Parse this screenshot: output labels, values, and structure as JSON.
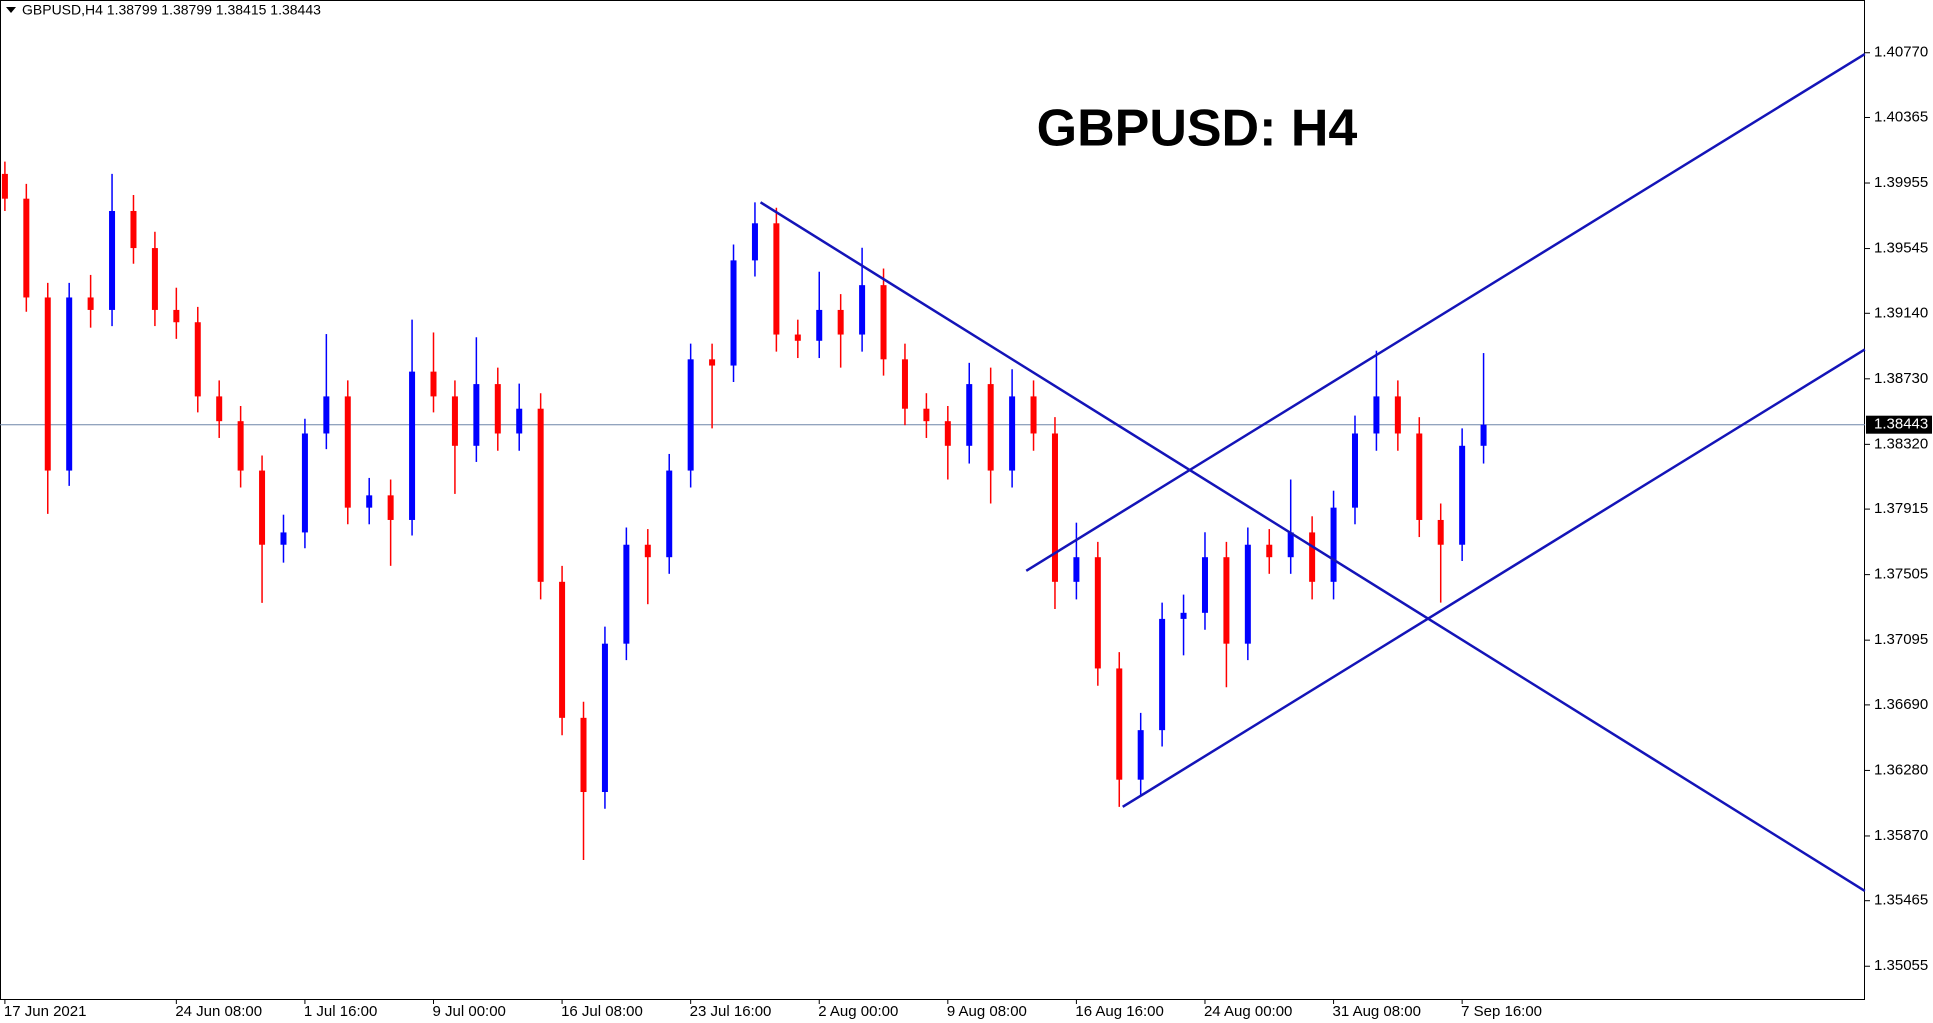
{
  "chart_data": {
    "type": "candlestick",
    "symbol_info": "GBPUSD,H4  1.38799 1.38799 1.38415 1.38443",
    "title": "GBPUSD: H4",
    "categories": [
      "17 Jun 2021",
      null,
      null,
      null,
      null,
      null,
      null,
      null,
      "24 Jun 08:00",
      null,
      null,
      null,
      null,
      null,
      "1 Jul 16:00",
      null,
      null,
      null,
      null,
      null,
      "9 Jul 00:00",
      null,
      null,
      null,
      null,
      null,
      "16 Jul 08:00",
      null,
      null,
      null,
      null,
      null,
      "23 Jul 16:00",
      null,
      null,
      null,
      null,
      null,
      "2 Aug 00:00",
      null,
      null,
      null,
      null,
      null,
      "9 Aug 08:00",
      null,
      null,
      null,
      null,
      null,
      "16 Aug 16:00",
      null,
      null,
      null,
      null,
      null,
      "24 Aug 00:00",
      null,
      null,
      null,
      null,
      null,
      "31 Aug 08:00",
      null,
      null,
      null,
      null,
      null,
      "7 Sep 16:00",
      null
    ],
    "open": [
      1.40012,
      1.39857,
      1.39239,
      1.38156,
      1.39239,
      1.39161,
      1.3978,
      1.39548,
      1.39161,
      1.39084,
      1.3862,
      1.38465,
      1.38156,
      1.37692,
      1.37769,
      1.38388,
      1.3862,
      1.37924,
      1.38001,
      1.37847,
      1.38775,
      1.3862,
      1.38311,
      1.38697,
      1.38388,
      1.38543,
      1.3746,
      1.36609,
      1.36145,
      1.37073,
      1.37692,
      1.37614,
      1.38156,
      1.38852,
      1.38813,
      1.39471,
      1.39703,
      1.39007,
      1.38968,
      1.39161,
      1.39007,
      1.39316,
      1.38852,
      1.38543,
      1.38465,
      1.38311,
      1.38697,
      1.38156,
      1.3862,
      1.38388,
      1.3746,
      1.37614,
      1.36918,
      1.36222,
      1.36532,
      1.37228,
      1.37266,
      1.37614,
      1.37073,
      1.37692,
      1.37614,
      1.37769,
      1.3746,
      1.37924,
      1.38388,
      1.3862,
      1.38388,
      1.37847,
      1.37692,
      1.38311
    ],
    "high": [
      1.40089,
      1.3995,
      1.3933,
      1.3933,
      1.3938,
      1.40012,
      1.3988,
      1.3965,
      1.393,
      1.3918,
      1.3872,
      1.3856,
      1.3825,
      1.3788,
      1.3848,
      1.3901,
      1.3872,
      1.3811,
      1.381,
      1.391,
      1.3902,
      1.3872,
      1.3899,
      1.388,
      1.387,
      1.3864,
      1.3756,
      1.3671,
      1.3718,
      1.378,
      1.3779,
      1.3826,
      1.3895,
      1.3895,
      1.3957,
      1.39834,
      1.398,
      1.391,
      1.394,
      1.3926,
      1.3955,
      1.3942,
      1.3895,
      1.3864,
      1.3856,
      1.3883,
      1.388,
      1.3879,
      1.3872,
      1.3849,
      1.3783,
      1.3771,
      1.3702,
      1.3664,
      1.3733,
      1.3738,
      1.3777,
      1.3771,
      1.378,
      1.3779,
      1.381,
      1.3787,
      1.3803,
      1.385,
      1.38906,
      1.3872,
      1.3849,
      1.3795,
      1.3842,
      1.38891
    ],
    "low": [
      1.3978,
      1.3915,
      1.37885,
      1.3806,
      1.3905,
      1.3906,
      1.3945,
      1.3906,
      1.3898,
      1.3852,
      1.3836,
      1.3805,
      1.37328,
      1.3758,
      1.3767,
      1.3829,
      1.3782,
      1.3782,
      1.3756,
      1.3775,
      1.3852,
      1.3801,
      1.3821,
      1.3828,
      1.3828,
      1.3735,
      1.365,
      1.3572,
      1.3604,
      1.3697,
      1.3732,
      1.3751,
      1.3805,
      1.3842,
      1.3871,
      1.3937,
      1.389,
      1.3886,
      1.3886,
      1.388,
      1.389,
      1.3875,
      1.3844,
      1.3836,
      1.381,
      1.382,
      1.3795,
      1.3805,
      1.3828,
      1.3729,
      1.3735,
      1.3681,
      1.36052,
      1.3612,
      1.3643,
      1.37,
      1.3716,
      1.368,
      1.3697,
      1.3751,
      1.3751,
      1.3735,
      1.3735,
      1.3782,
      1.3828,
      1.3828,
      1.3774,
      1.3733,
      1.3759,
      1.382
    ],
    "close": [
      1.39857,
      1.39239,
      1.38156,
      1.39239,
      1.39161,
      1.3978,
      1.39548,
      1.39161,
      1.39084,
      1.3862,
      1.38465,
      1.38156,
      1.37692,
      1.37769,
      1.38388,
      1.3862,
      1.37924,
      1.38001,
      1.37847,
      1.38775,
      1.3862,
      1.38311,
      1.38697,
      1.38388,
      1.38543,
      1.3746,
      1.36609,
      1.36145,
      1.37073,
      1.37692,
      1.37614,
      1.38156,
      1.38852,
      1.38813,
      1.39471,
      1.39703,
      1.39007,
      1.38968,
      1.39161,
      1.39007,
      1.39316,
      1.38852,
      1.38543,
      1.38465,
      1.38311,
      1.38697,
      1.38156,
      1.3862,
      1.38388,
      1.3746,
      1.37614,
      1.36918,
      1.36222,
      1.36532,
      1.37228,
      1.37266,
      1.37614,
      1.37073,
      1.37692,
      1.37614,
      1.37769,
      1.3746,
      1.37924,
      1.38388,
      1.3862,
      1.38388,
      1.37847,
      1.37692,
      1.38311,
      1.38443
    ],
    "colors": {
      "up": "#0000ff",
      "down": "#ff0000"
    },
    "last_price": 1.38443,
    "last_price_color": "#6f86a8",
    "trendlines": [
      {
        "color": "#1414b8",
        "x": [
          35.26,
          86.79
        ],
        "y": [
          1.39834,
          1.35526
        ]
      },
      {
        "color": "#1414b8",
        "x": [
          47.66,
          86.79
        ],
        "y": [
          1.37529,
          1.40762
        ]
      },
      {
        "color": "#1414b8",
        "x": [
          52.16,
          86.79
        ],
        "y": [
          1.36052,
          1.38914
        ]
      }
    ],
    "ylim": [
      1.3485,
      1.411
    ],
    "yticks": [
      {
        "value": 1.4077,
        "label": "1.40770"
      },
      1.40365,
      1.39955,
      1.39545,
      {
        "value": 1.3914,
        "label": "1.39140"
      },
      {
        "value": 1.3873,
        "label": "1.38730"
      },
      {
        "value": 1.3832,
        "label": "1.38320"
      },
      1.37915,
      1.37505,
      1.37095,
      {
        "value": 1.3669,
        "label": "1.36690"
      },
      {
        "value": 1.3628,
        "label": "1.36280"
      },
      {
        "value": 1.3587,
        "label": "1.35870"
      },
      1.35465,
      1.35055
    ]
  }
}
